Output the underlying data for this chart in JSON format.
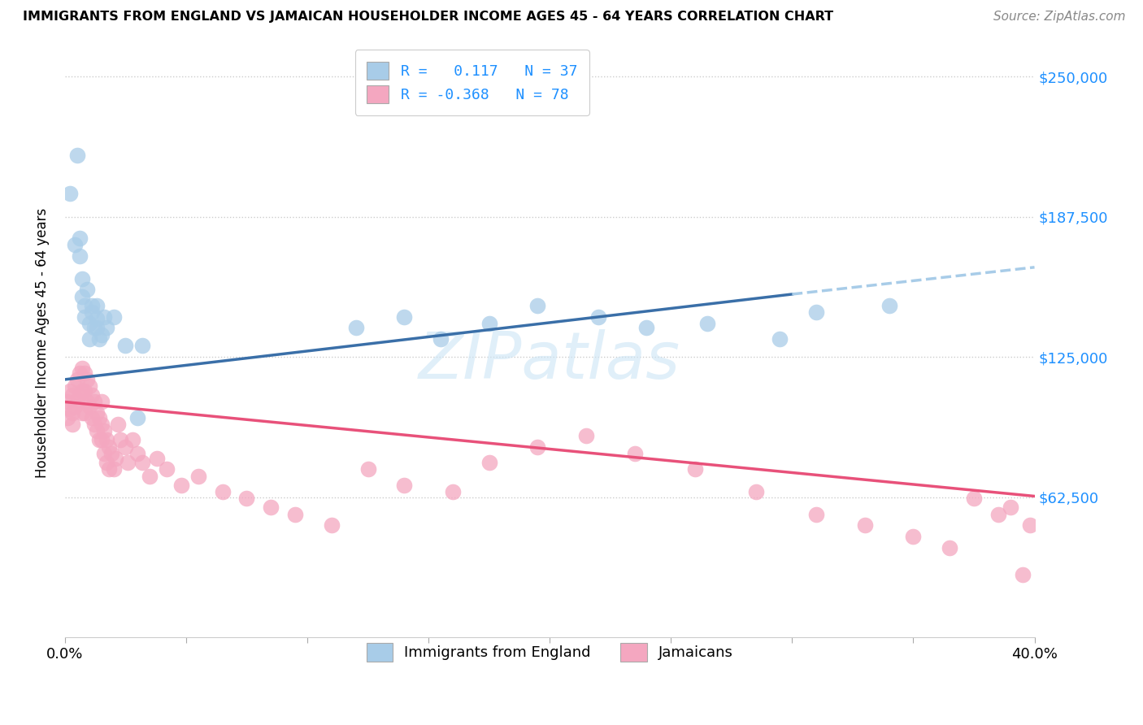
{
  "title": "IMMIGRANTS FROM ENGLAND VS JAMAICAN HOUSEHOLDER INCOME AGES 45 - 64 YEARS CORRELATION CHART",
  "source": "Source: ZipAtlas.com",
  "ylabel": "Householder Income Ages 45 - 64 years",
  "ytick_labels": [
    "$250,000",
    "$187,500",
    "$125,000",
    "$62,500"
  ],
  "ytick_values": [
    250000,
    187500,
    125000,
    62500
  ],
  "ymin": 0,
  "ymax": 262500,
  "xmin": 0.0,
  "xmax": 0.4,
  "legend_entry1": "R =   0.117   N = 37",
  "legend_entry2": "R = -0.368   N = 78",
  "legend_label1": "Immigrants from England",
  "legend_label2": "Jamaicans",
  "color_blue": "#a8cce8",
  "color_pink": "#f4a7c0",
  "color_line_blue": "#3a6fa8",
  "color_line_pink": "#e8517a",
  "color_dashed": "#a8cce8",
  "watermark": "ZIPatlas",
  "england_scatter_x": [
    0.002,
    0.004,
    0.005,
    0.006,
    0.006,
    0.007,
    0.007,
    0.008,
    0.008,
    0.009,
    0.01,
    0.01,
    0.011,
    0.011,
    0.012,
    0.013,
    0.013,
    0.013,
    0.014,
    0.015,
    0.016,
    0.017,
    0.02,
    0.025,
    0.03,
    0.032,
    0.12,
    0.14,
    0.155,
    0.175,
    0.195,
    0.22,
    0.24,
    0.265,
    0.295,
    0.31,
    0.34
  ],
  "england_scatter_y": [
    198000,
    175000,
    215000,
    170000,
    178000,
    160000,
    152000,
    148000,
    143000,
    155000,
    140000,
    133000,
    148000,
    145000,
    138000,
    148000,
    142000,
    138000,
    133000,
    135000,
    143000,
    138000,
    143000,
    130000,
    98000,
    130000,
    138000,
    143000,
    133000,
    140000,
    148000,
    143000,
    138000,
    140000,
    133000,
    145000,
    148000
  ],
  "jamaica_scatter_x": [
    0.001,
    0.001,
    0.002,
    0.002,
    0.003,
    0.003,
    0.003,
    0.004,
    0.004,
    0.005,
    0.005,
    0.006,
    0.006,
    0.007,
    0.007,
    0.007,
    0.008,
    0.008,
    0.008,
    0.009,
    0.009,
    0.01,
    0.01,
    0.011,
    0.011,
    0.012,
    0.012,
    0.013,
    0.013,
    0.014,
    0.014,
    0.015,
    0.015,
    0.015,
    0.016,
    0.016,
    0.017,
    0.017,
    0.018,
    0.018,
    0.019,
    0.02,
    0.021,
    0.022,
    0.023,
    0.025,
    0.026,
    0.028,
    0.03,
    0.032,
    0.035,
    0.038,
    0.042,
    0.048,
    0.055,
    0.065,
    0.075,
    0.085,
    0.095,
    0.11,
    0.125,
    0.14,
    0.16,
    0.175,
    0.195,
    0.215,
    0.235,
    0.26,
    0.285,
    0.31,
    0.33,
    0.35,
    0.365,
    0.375,
    0.385,
    0.39,
    0.395,
    0.398
  ],
  "jamaica_scatter_y": [
    105000,
    98000,
    110000,
    102000,
    108000,
    95000,
    100000,
    112000,
    103000,
    115000,
    106000,
    118000,
    108000,
    120000,
    110000,
    100000,
    118000,
    110000,
    100000,
    115000,
    105000,
    112000,
    103000,
    108000,
    98000,
    105000,
    95000,
    100000,
    92000,
    98000,
    88000,
    95000,
    105000,
    88000,
    92000,
    82000,
    88000,
    78000,
    85000,
    75000,
    82000,
    75000,
    80000,
    95000,
    88000,
    85000,
    78000,
    88000,
    82000,
    78000,
    72000,
    80000,
    75000,
    68000,
    72000,
    65000,
    62000,
    58000,
    55000,
    50000,
    75000,
    68000,
    65000,
    78000,
    85000,
    90000,
    82000,
    75000,
    65000,
    55000,
    50000,
    45000,
    40000,
    62000,
    55000,
    58000,
    28000,
    50000
  ]
}
